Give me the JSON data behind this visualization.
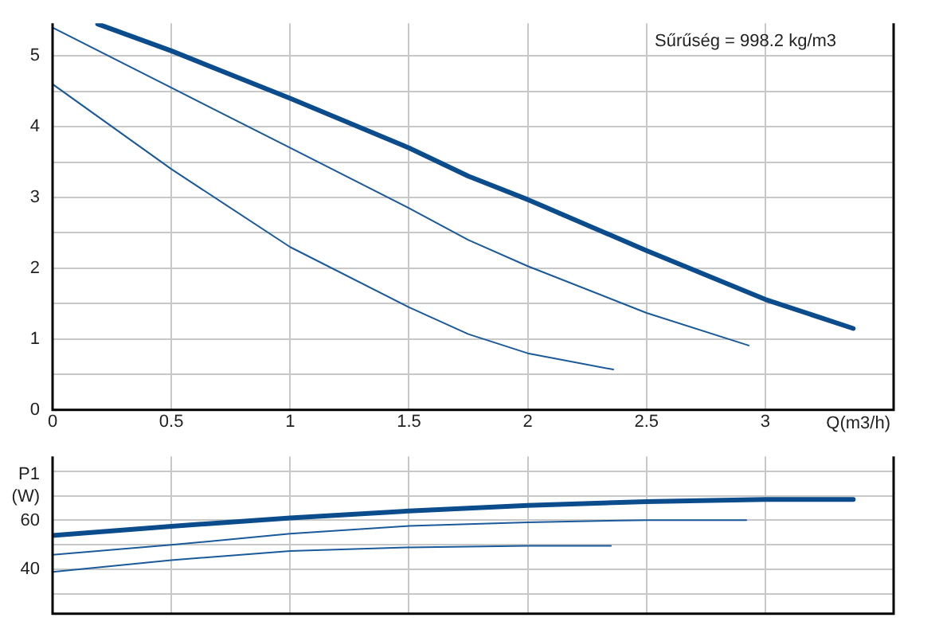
{
  "chart_data": [
    {
      "type": "line",
      "xlabel": "Q(m3/h)",
      "annotations": [
        "Sűrűség = 998.2 kg/m3"
      ],
      "xlim": [
        0,
        3.54
      ],
      "ylim": [
        0,
        5.46
      ],
      "xticks": [
        0,
        0.5,
        1,
        1.5,
        2,
        2.5,
        3
      ],
      "yticks": [
        0,
        {
          "value": 0.5,
          "label": null
        },
        1,
        {
          "value": 1.5,
          "label": null
        },
        2,
        {
          "value": 2.5,
          "label": null
        },
        3,
        {
          "value": 3.5,
          "label": null
        },
        4,
        {
          "value": 4.5,
          "label": null
        },
        5
      ],
      "grid": true,
      "legend": false,
      "marker": "none",
      "line_style": "solid",
      "series": [
        {
          "color": "#0b4c8c",
          "x": [
            0.19,
            0.5,
            1,
            1.5,
            1.75,
            2,
            2.5,
            3,
            3.37
          ],
          "values": [
            5.45,
            5.07,
            4.4,
            3.7,
            3.3,
            2.97,
            2.25,
            1.56,
            1.15
          ]
        },
        {
          "color": "#1a5a9a",
          "x": [
            0,
            0.5,
            1,
            1.5,
            1.75,
            2,
            2.5,
            2.93
          ],
          "values": [
            5.4,
            4.55,
            3.7,
            2.85,
            2.4,
            2.03,
            1.37,
            0.91
          ]
        },
        {
          "color": "#1a5a9a",
          "x": [
            0,
            0.5,
            1,
            1.5,
            1.75,
            2,
            2.36
          ],
          "values": [
            4.6,
            3.4,
            2.3,
            1.45,
            1.07,
            0.8,
            0.57
          ]
        }
      ]
    },
    {
      "type": "line",
      "ylabel": "P1 (W)",
      "xlim": [
        0,
        3.54
      ],
      "ylim": [
        22,
        86
      ],
      "xticks": [
        0,
        0.5,
        1,
        1.5,
        2,
        2.5,
        3
      ],
      "yticks": [
        {
          "value": 30,
          "label": null
        },
        40,
        {
          "value": 50,
          "label": null
        },
        60,
        {
          "value": 70,
          "label": null
        },
        {
          "value": 80,
          "label": null
        }
      ],
      "tick_labels": "y",
      "grid": true,
      "legend": false,
      "marker": "none",
      "line_style": "solid",
      "series": [
        {
          "color": "#0b4c8c",
          "x": [
            0,
            0.5,
            1,
            1.5,
            2,
            2.5,
            3,
            3.37
          ],
          "values": [
            53.8,
            57.6,
            61,
            63.8,
            66.1,
            67.6,
            68.5,
            68.5
          ]
        },
        {
          "color": "#1a5a9a",
          "x": [
            0,
            0.5,
            1,
            1.5,
            2,
            2.5,
            2.92
          ],
          "values": [
            46,
            50,
            54.6,
            57.7,
            59.2,
            60.1,
            60.1
          ]
        },
        {
          "color": "#1a5a9a",
          "x": [
            0,
            0.5,
            1,
            1.5,
            2,
            2.35
          ],
          "values": [
            39,
            43.8,
            47.5,
            49,
            49.6,
            49.6
          ]
        }
      ]
    }
  ]
}
